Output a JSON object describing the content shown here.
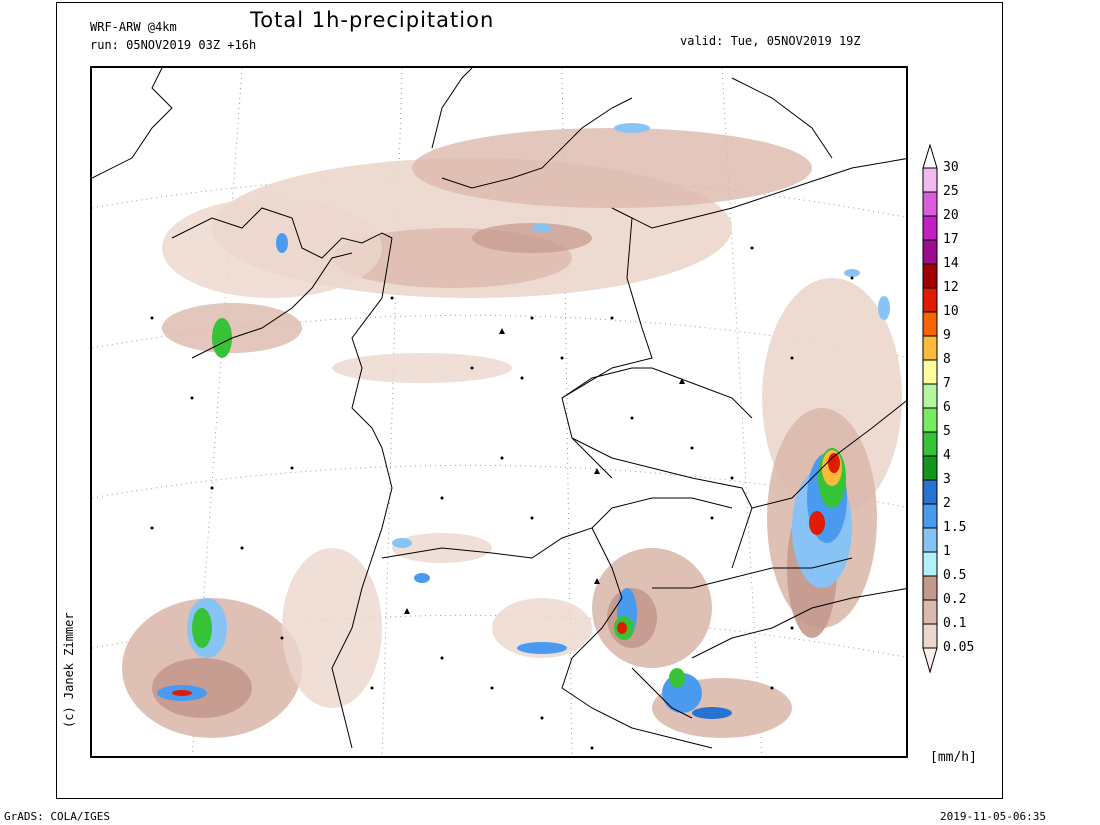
{
  "header": {
    "model": "WRF-ARW @4km",
    "run": "run: 05NOV2019 03Z +16h",
    "title": "Total 1h-precipitation",
    "valid": "valid: Tue, 05NOV2019 19Z"
  },
  "credit": "(c) Janek Zimmer",
  "legend": {
    "unit": "[mm/h]",
    "levels": [
      {
        "label": "30",
        "color": "#f0b9f0"
      },
      {
        "label": "25",
        "color": "#dc5ddc"
      },
      {
        "label": "20",
        "color": "#c21fc2"
      },
      {
        "label": "17",
        "color": "#9e0c8e"
      },
      {
        "label": "14",
        "color": "#a00000"
      },
      {
        "label": "12",
        "color": "#e01b00"
      },
      {
        "label": "10",
        "color": "#fa6400"
      },
      {
        "label": "9",
        "color": "#fdb93c"
      },
      {
        "label": "8",
        "color": "#fefda0"
      },
      {
        "label": "7",
        "color": "#b4f5a0"
      },
      {
        "label": "6",
        "color": "#78eb64"
      },
      {
        "label": "5",
        "color": "#37c337"
      },
      {
        "label": "4",
        "color": "#14961e"
      },
      {
        "label": "3",
        "color": "#2873d2"
      },
      {
        "label": "2",
        "color": "#4a9bf0"
      },
      {
        "label": "1.5",
        "color": "#87c3f5"
      },
      {
        "label": "1",
        "color": "#b4f0fa"
      },
      {
        "label": "0.5",
        "color": "#c3998c"
      },
      {
        "label": "0.2",
        "color": "#dcb9ad"
      },
      {
        "label": "0.1",
        "color": "#ebd7cd"
      },
      {
        "label": "0.05",
        "color": "#faf0eb"
      }
    ]
  },
  "footer": {
    "left": "GrADS: COLA/IGES",
    "right": "2019-11-05-06:35"
  }
}
